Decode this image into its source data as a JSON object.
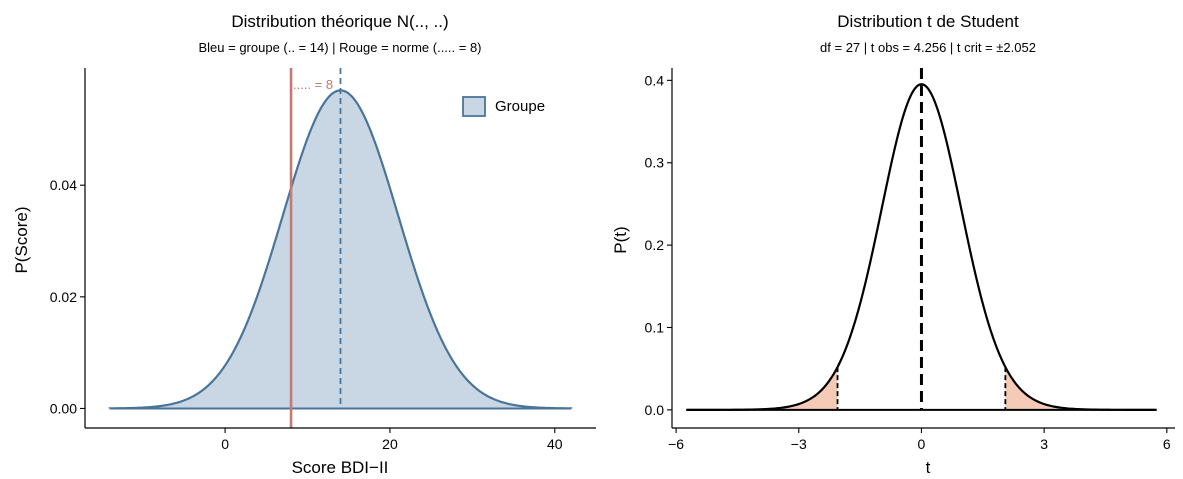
{
  "chart_data": [
    {
      "type": "area",
      "title": "Distribution théorique N(.., ..)",
      "subtitle": "Bleu = groupe (.. = 14)  |  Rouge = norme (..... = 8)",
      "xlabel": "Score BDI−II",
      "ylabel": "P(Score)",
      "xlim": [
        -17,
        45
      ],
      "ylim": [
        -0.0035,
        0.061
      ],
      "x_ticks": [
        0,
        20,
        40
      ],
      "x_tick_labels": [
        "0",
        "20",
        "40"
      ],
      "y_ticks": [
        0,
        0.02,
        0.04
      ],
      "y_tick_labels": [
        "0.00",
        "0.02",
        "0.04"
      ],
      "series": [
        {
          "name": "Groupe",
          "distribution": "normal",
          "mean": 14,
          "sd": 7,
          "x_range": [
            -14,
            42
          ]
        }
      ],
      "reference_lines": [
        {
          "x": 8,
          "style": "solid",
          "color": "#c27b73"
        },
        {
          "x": 14,
          "style": "dashed",
          "color": "#4a7599"
        }
      ],
      "annotation": "..... = 8",
      "legend": {
        "position": "top-right",
        "entries": [
          "Groupe"
        ]
      },
      "colors": {
        "fill": "#c9d7e5",
        "line": "#4a7599",
        "norm": "#c27b73"
      },
      "grid": false
    },
    {
      "type": "line",
      "title": "Distribution t de Student",
      "subtitle": "df = 27  |  t obs = 4.256  |  t crit = ±2.052",
      "xlabel": "t",
      "ylabel": "P(t)",
      "df": 27,
      "t_obs": 4.256,
      "t_crit": 2.052,
      "xlim": [
        -6.1,
        6.2
      ],
      "ylim": [
        -0.022,
        0.415
      ],
      "x_ticks": [
        -6,
        -3,
        0,
        3,
        6
      ],
      "x_tick_labels": [
        "−6",
        "−3",
        "0",
        "3",
        "6"
      ],
      "y_ticks": [
        0,
        0.1,
        0.2,
        0.3,
        0.4
      ],
      "y_tick_labels": [
        "0.0",
        "0.1",
        "0.2",
        "0.3",
        "0.4"
      ],
      "x_range": [
        -5.75,
        5.75
      ],
      "shaded_tails": [
        [
          -5.75,
          -2.052
        ],
        [
          2.052,
          5.75
        ]
      ],
      "colors": {
        "line": "#000000",
        "tail_fill": "#f5cbb7"
      },
      "grid": false
    }
  ]
}
